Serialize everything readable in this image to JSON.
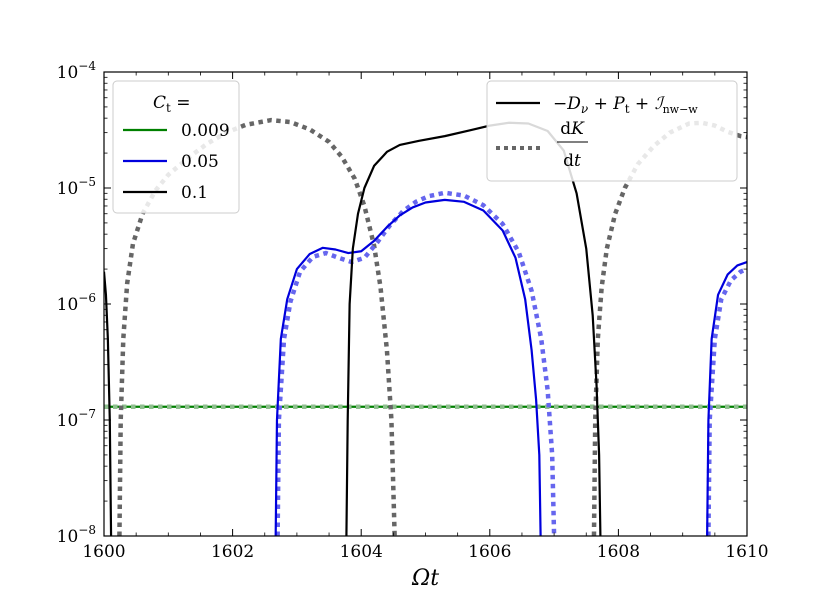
{
  "chart_data": {
    "type": "line",
    "xlabel": "Ωt",
    "ylabel": "",
    "xlim": [
      1600,
      1610
    ],
    "ylim": [
      1e-08,
      0.0001
    ],
    "yscale": "log",
    "grid": false,
    "x_ticks": [
      1600,
      1602,
      1604,
      1606,
      1608,
      1610
    ],
    "x_tick_labels": [
      "1600",
      "1602",
      "1604",
      "1606",
      "1608",
      "1610"
    ],
    "y_ticks": [
      1e-08,
      1e-07,
      1e-06,
      1e-05,
      0.0001
    ],
    "y_tick_labels": [
      {
        "base": "10",
        "exp": "−8"
      },
      {
        "base": "10",
        "exp": "−7"
      },
      {
        "base": "10",
        "exp": "−6"
      },
      {
        "base": "10",
        "exp": "−5"
      },
      {
        "base": "10",
        "exp": "−4"
      }
    ],
    "legend_ct": {
      "placement": "top-left",
      "title": "C",
      "title_sub": "t",
      "title_suffix": " =",
      "entries": [
        {
          "label": "0.009",
          "color": "#008000"
        },
        {
          "label": "0.05",
          "color": "#0000dd"
        },
        {
          "label": "0.1",
          "color": "#000000"
        }
      ]
    },
    "legend_terms": {
      "placement": "top-right",
      "entries": [
        {
          "style": "solid",
          "label": "−D_ν + P_t + I_nw−w"
        },
        {
          "style": "dotted",
          "label": "dK/dt"
        }
      ]
    },
    "series": [
      {
        "ct": "0.009",
        "term": "solid",
        "color": "#008000",
        "segments": [
          [
            [
              1600,
              1.3e-07
            ],
            [
              1610,
              1.3e-07
            ]
          ]
        ]
      },
      {
        "ct": "0.009",
        "term": "dotted",
        "color": "#8fbf8f",
        "segments": [
          [
            [
              1600,
              1.3e-07
            ],
            [
              1610,
              1.3e-07
            ]
          ]
        ]
      },
      {
        "ct": "0.05",
        "term": "solid",
        "color": "#0000dd",
        "segments": [
          [
            [
              1602.67,
              1e-08
            ],
            [
              1602.69,
              1e-07
            ],
            [
              1602.75,
              5e-07
            ],
            [
              1602.85,
              1.1e-06
            ],
            [
              1603.0,
              2e-06
            ],
            [
              1603.2,
              2.7e-06
            ],
            [
              1603.4,
              3.05e-06
            ],
            [
              1603.6,
              2.95e-06
            ],
            [
              1603.8,
              2.75e-06
            ],
            [
              1604.0,
              2.85e-06
            ],
            [
              1604.2,
              3.5e-06
            ],
            [
              1604.4,
              4.6e-06
            ],
            [
              1604.6,
              5.8e-06
            ],
            [
              1604.8,
              6.8e-06
            ],
            [
              1605.0,
              7.5e-06
            ],
            [
              1605.3,
              7.9e-06
            ],
            [
              1605.6,
              7.6e-06
            ],
            [
              1605.9,
              6.4e-06
            ],
            [
              1606.2,
              4.3e-06
            ],
            [
              1606.4,
              2.5e-06
            ],
            [
              1606.55,
              1.1e-06
            ],
            [
              1606.65,
              4e-07
            ],
            [
              1606.72,
              1.5e-07
            ],
            [
              1606.77,
              5e-08
            ],
            [
              1606.79,
              1e-08
            ]
          ],
          [
            [
              1609.38,
              1e-08
            ],
            [
              1609.4,
              1e-07
            ],
            [
              1609.45,
              5e-07
            ],
            [
              1609.55,
              1.2e-06
            ],
            [
              1609.7,
              1.8e-06
            ],
            [
              1609.85,
              2.15e-06
            ],
            [
              1610.0,
              2.3e-06
            ]
          ]
        ]
      },
      {
        "ct": "0.05",
        "term": "dotted",
        "color": "#6666ee",
        "segments": [
          [
            [
              1602.7,
              1e-08
            ],
            [
              1602.72,
              1e-07
            ],
            [
              1602.8,
              5e-07
            ],
            [
              1602.9,
              1.05e-06
            ],
            [
              1603.05,
              1.9e-06
            ],
            [
              1603.25,
              2.55e-06
            ],
            [
              1603.45,
              2.75e-06
            ],
            [
              1603.65,
              2.5e-06
            ],
            [
              1603.85,
              2.3e-06
            ],
            [
              1604.05,
              2.5e-06
            ],
            [
              1604.25,
              3.4e-06
            ],
            [
              1604.45,
              4.8e-06
            ],
            [
              1604.65,
              6.3e-06
            ],
            [
              1604.85,
              7.6e-06
            ],
            [
              1605.05,
              8.5e-06
            ],
            [
              1605.3,
              9.1e-06
            ],
            [
              1605.6,
              8.6e-06
            ],
            [
              1605.9,
              7.1e-06
            ],
            [
              1606.2,
              4.9e-06
            ],
            [
              1606.45,
              2.8e-06
            ],
            [
              1606.65,
              1.3e-06
            ],
            [
              1606.8,
              5e-07
            ],
            [
              1606.9,
              1.8e-07
            ],
            [
              1606.97,
              5e-08
            ],
            [
              1607.0,
              1e-08
            ]
          ],
          [
            [
              1609.4,
              1e-08
            ],
            [
              1609.42,
              1e-07
            ],
            [
              1609.5,
              5e-07
            ],
            [
              1609.6,
              1.1e-06
            ],
            [
              1609.75,
              1.6e-06
            ],
            [
              1609.9,
              1.9e-06
            ],
            [
              1610.0,
              2e-06
            ]
          ]
        ]
      },
      {
        "ct": "0.1",
        "term": "solid",
        "color": "#000000",
        "segments": [
          [
            [
              1600.0,
              1.9e-06
            ],
            [
              1600.03,
              1.2e-06
            ],
            [
              1600.06,
              5e-07
            ],
            [
              1600.09,
              1e-07
            ],
            [
              1600.11,
              1e-08
            ]
          ],
          [
            [
              1603.77,
              1e-08
            ],
            [
              1603.79,
              1e-07
            ],
            [
              1603.82,
              1e-06
            ],
            [
              1603.87,
              3e-06
            ],
            [
              1603.95,
              6e-06
            ],
            [
              1604.05,
              1e-05
            ],
            [
              1604.2,
              1.55e-05
            ],
            [
              1604.4,
              2.05e-05
            ],
            [
              1604.6,
              2.35e-05
            ],
            [
              1604.9,
              2.55e-05
            ],
            [
              1605.3,
              2.8e-05
            ],
            [
              1605.7,
              3.15e-05
            ],
            [
              1606.0,
              3.45e-05
            ],
            [
              1606.3,
              3.65e-05
            ],
            [
              1606.6,
              3.6e-05
            ],
            [
              1606.9,
              3.1e-05
            ],
            [
              1607.15,
              2.1e-05
            ],
            [
              1607.35,
              9e-06
            ],
            [
              1607.5,
              3e-06
            ],
            [
              1607.6,
              8e-07
            ],
            [
              1607.66,
              2e-07
            ],
            [
              1607.7,
              5e-08
            ],
            [
              1607.72,
              1e-08
            ]
          ]
        ]
      },
      {
        "ct": "0.1",
        "term": "dotted",
        "color": "#666666",
        "segments": [
          [
            [
              1600.24,
              1e-08
            ],
            [
              1600.26,
              1e-07
            ],
            [
              1600.3,
              5e-07
            ],
            [
              1600.36,
              1.5e-06
            ],
            [
              1600.45,
              3.3e-06
            ],
            [
              1600.6,
              6e-06
            ],
            [
              1600.8,
              9.5e-06
            ],
            [
              1601.0,
              1.3e-05
            ],
            [
              1601.3,
              1.8e-05
            ],
            [
              1601.6,
              2.4e-05
            ],
            [
              1601.9,
              3e-05
            ],
            [
              1602.2,
              3.5e-05
            ],
            [
              1602.6,
              3.85e-05
            ],
            [
              1602.9,
              3.7e-05
            ],
            [
              1603.2,
              3.2e-05
            ],
            [
              1603.5,
              2.5e-05
            ],
            [
              1603.7,
              1.85e-05
            ],
            [
              1603.9,
              1.2e-05
            ],
            [
              1604.05,
              7e-06
            ],
            [
              1604.2,
              3.2e-06
            ],
            [
              1604.3,
              1.4e-06
            ],
            [
              1604.4,
              4e-07
            ],
            [
              1604.47,
              1e-07
            ],
            [
              1604.52,
              1e-08
            ]
          ],
          [
            [
              1607.62,
              1e-08
            ],
            [
              1607.64,
              1e-07
            ],
            [
              1607.68,
              5e-07
            ],
            [
              1607.74,
              1.4e-06
            ],
            [
              1607.82,
              3e-06
            ],
            [
              1607.95,
              6e-06
            ],
            [
              1608.1,
              1e-05
            ],
            [
              1608.3,
              1.6e-05
            ],
            [
              1608.55,
              2.3e-05
            ],
            [
              1608.8,
              3e-05
            ],
            [
              1609.1,
              3.6e-05
            ],
            [
              1609.3,
              3.65e-05
            ],
            [
              1609.5,
              3.45e-05
            ],
            [
              1609.7,
              3.05e-05
            ],
            [
              1609.9,
              2.8e-05
            ],
            [
              1610.0,
              2.75e-05
            ]
          ]
        ]
      }
    ]
  }
}
